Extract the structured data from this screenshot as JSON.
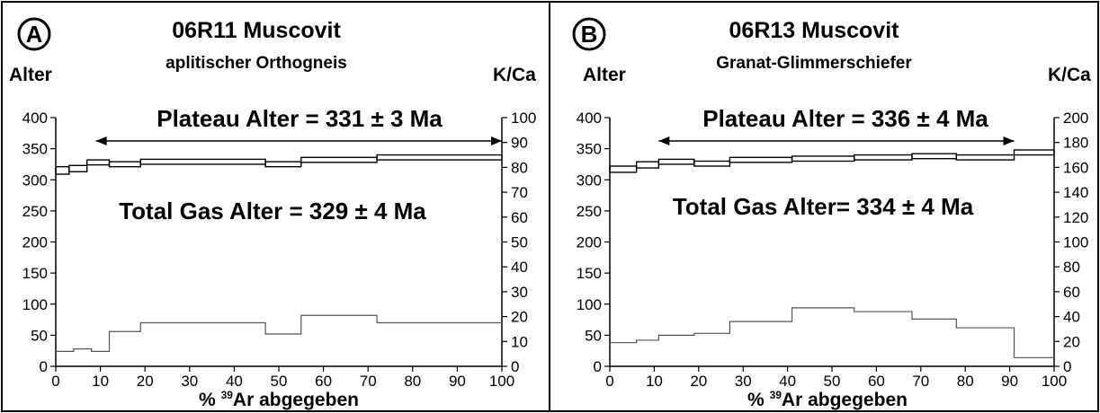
{
  "chart_data": [
    {
      "type": "line",
      "panel_letter": "A",
      "title": "06R11 Muscovit",
      "subtitle": "aplitischer Orthogneis",
      "xlabel_prefix": "% ",
      "xlabel_sup": "39",
      "xlabel_suffix": "Ar abgegeben",
      "ylabel_left": "Alter",
      "ylabel_right": "K/Ca",
      "xlim": [
        0,
        100
      ],
      "ylim_left": [
        0,
        400
      ],
      "ylim_right": [
        0,
        100
      ],
      "xticks": [
        0,
        10,
        20,
        30,
        40,
        50,
        60,
        70,
        80,
        90,
        100
      ],
      "yticks_left": [
        0,
        50,
        100,
        150,
        200,
        250,
        300,
        350,
        400
      ],
      "yticks_right": [
        0,
        10,
        20,
        30,
        40,
        50,
        60,
        70,
        80,
        90,
        100
      ],
      "plateau_text": "Plateau Alter = 331 ± 3 Ma",
      "total_gas_text": "Total Gas Alter = 329 ± 4 Ma",
      "plateau_range": [
        9,
        100
      ],
      "series": [
        {
          "axis": "left",
          "steps": [
            [
              0,
              3,
              315,
              6
            ],
            [
              3,
              7,
              318,
              5
            ],
            [
              7,
              12,
              328,
              4
            ],
            [
              12,
              19,
              325,
              4
            ],
            [
              19,
              47,
              329,
              4
            ],
            [
              47,
              55,
              325,
              4
            ],
            [
              55,
              72,
              332,
              4
            ],
            [
              72,
              100,
              336,
              4
            ]
          ]
        },
        {
          "axis": "right",
          "steps": [
            [
              0,
              4,
              6
            ],
            [
              4,
              8,
              7
            ],
            [
              8,
              12,
              6
            ],
            [
              12,
              19,
              14
            ],
            [
              19,
              47,
              17.5
            ],
            [
              47,
              55,
              13
            ],
            [
              55,
              72,
              20.5
            ],
            [
              72,
              100,
              17.5
            ]
          ]
        }
      ]
    },
    {
      "type": "line",
      "panel_letter": "B",
      "title": "06R13 Muscovit",
      "subtitle": "Granat-Glimmerschiefer",
      "xlabel_prefix": "% ",
      "xlabel_sup": "39",
      "xlabel_suffix": "Ar abgegeben",
      "ylabel_left": "Alter",
      "ylabel_right": "K/Ca",
      "xlim": [
        0,
        100
      ],
      "ylim_left": [
        0,
        400
      ],
      "ylim_right": [
        0,
        200
      ],
      "xticks": [
        0,
        10,
        20,
        30,
        40,
        50,
        60,
        70,
        80,
        90,
        100
      ],
      "yticks_left": [
        0,
        50,
        100,
        150,
        200,
        250,
        300,
        350,
        400
      ],
      "yticks_right": [
        0,
        20,
        40,
        60,
        80,
        100,
        120,
        140,
        160,
        180,
        200
      ],
      "plateau_text": "Plateau Alter = 336 ± 4 Ma",
      "total_gas_text": "Total Gas Alter= 334 ± 4 Ma",
      "plateau_range": [
        11,
        91
      ],
      "series": [
        {
          "axis": "left",
          "steps": [
            [
              0,
              6,
              317,
              5
            ],
            [
              6,
              11,
              324,
              5
            ],
            [
              11,
              19,
              329,
              4
            ],
            [
              19,
              27,
              326,
              4
            ],
            [
              27,
              41,
              332,
              4
            ],
            [
              41,
              55,
              334,
              4
            ],
            [
              55,
              68,
              336,
              4
            ],
            [
              68,
              78,
              338,
              4
            ],
            [
              78,
              91,
              336,
              4
            ],
            [
              91,
              100,
              344,
              4
            ]
          ]
        },
        {
          "axis": "right",
          "steps": [
            [
              0,
              6,
              19
            ],
            [
              6,
              11,
              21
            ],
            [
              11,
              19,
              25
            ],
            [
              19,
              27,
              26.5
            ],
            [
              27,
              41,
              36
            ],
            [
              41,
              55,
              47
            ],
            [
              55,
              68,
              44
            ],
            [
              68,
              78,
              38
            ],
            [
              78,
              91,
              31
            ],
            [
              91,
              100,
              7
            ]
          ]
        }
      ]
    }
  ]
}
